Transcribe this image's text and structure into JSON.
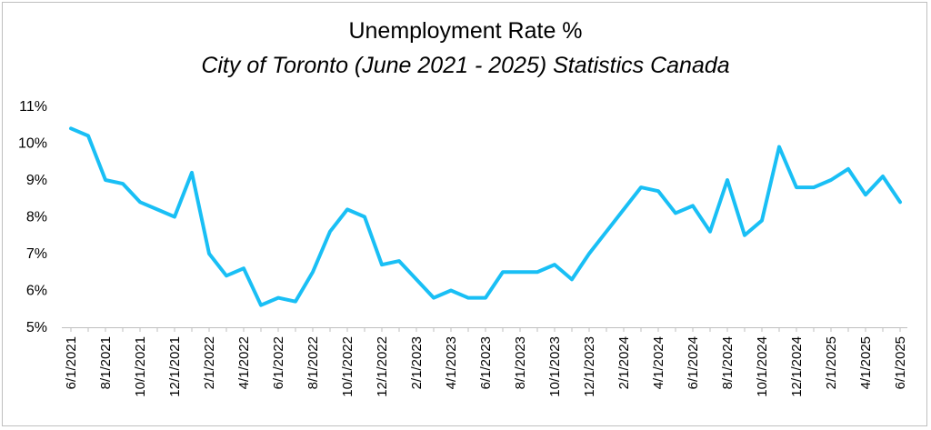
{
  "chart_data": {
    "type": "line",
    "title": "Unemployment Rate %",
    "subtitle": "City of Toronto (June 2021 - 2025) Statistics Canada",
    "xlabel": "",
    "ylabel": "",
    "ylim": [
      5,
      11
    ],
    "y_ticks": [
      "5%",
      "6%",
      "7%",
      "8%",
      "9%",
      "10%",
      "11%"
    ],
    "y_tick_values": [
      5,
      6,
      7,
      8,
      9,
      10,
      11
    ],
    "grid": false,
    "legend": "none",
    "line_color": "#19BFF5",
    "x": [
      "6/1/2021",
      "7/1/2021",
      "8/1/2021",
      "9/1/2021",
      "10/1/2021",
      "11/1/2021",
      "12/1/2021",
      "1/1/2022",
      "2/1/2022",
      "3/1/2022",
      "4/1/2022",
      "5/1/2022",
      "6/1/2022",
      "7/1/2022",
      "8/1/2022",
      "9/1/2022",
      "10/1/2022",
      "11/1/2022",
      "12/1/2022",
      "1/1/2023",
      "2/1/2023",
      "3/1/2023",
      "4/1/2023",
      "5/1/2023",
      "6/1/2023",
      "7/1/2023",
      "8/1/2023",
      "9/1/2023",
      "10/1/2023",
      "11/1/2023",
      "12/1/2023",
      "1/1/2024",
      "2/1/2024",
      "3/1/2024",
      "4/1/2024",
      "5/1/2024",
      "6/1/2024",
      "7/1/2024",
      "8/1/2024",
      "9/1/2024",
      "10/1/2024",
      "11/1/2024",
      "12/1/2024",
      "1/1/2025",
      "2/1/2025",
      "3/1/2025",
      "4/1/2025",
      "5/1/2025",
      "6/1/2025"
    ],
    "x_tick_labels": [
      "6/1/2021",
      "8/1/2021",
      "10/1/2021",
      "12/1/2021",
      "2/1/2022",
      "4/1/2022",
      "6/1/2022",
      "8/1/2022",
      "10/1/2022",
      "12/1/2022",
      "2/1/2023",
      "4/1/2023",
      "6/1/2023",
      "8/1/2023",
      "10/1/2023",
      "12/1/2023",
      "2/1/2024",
      "4/1/2024",
      "6/1/2024",
      "8/1/2024",
      "10/1/2024",
      "12/1/2024",
      "2/1/2025",
      "4/1/2025",
      "6/1/2025"
    ],
    "series": [
      {
        "values": [
          10.4,
          10.2,
          9.0,
          8.9,
          8.4,
          8.2,
          8.0,
          9.2,
          7.0,
          6.4,
          6.6,
          5.6,
          5.8,
          5.7,
          6.5,
          7.6,
          8.2,
          8.0,
          6.7,
          6.8,
          6.3,
          5.8,
          6.0,
          5.8,
          5.8,
          6.5,
          6.5,
          6.5,
          6.7,
          6.3,
          7.0,
          7.6,
          8.2,
          8.8,
          8.7,
          8.1,
          8.3,
          7.6,
          9.0,
          7.5,
          7.9,
          9.9,
          8.8,
          8.8,
          9.0,
          9.3,
          8.6,
          9.1,
          8.4
        ]
      }
    ]
  }
}
